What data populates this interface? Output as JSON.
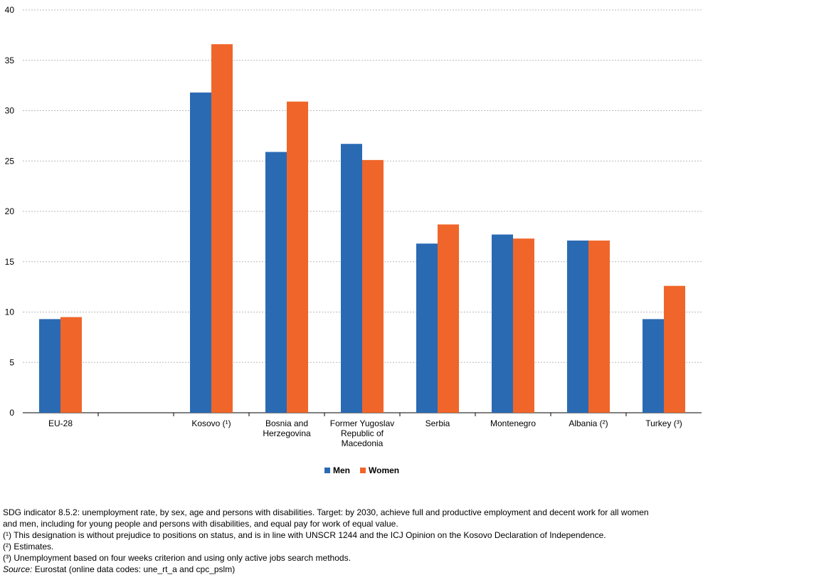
{
  "chart_data": {
    "type": "bar",
    "categories": [
      "EU-28",
      "",
      "Kosovo (¹)",
      "Bosnia and\nHerzegovina",
      "Former Yugoslav\nRepublic of\nMacedonia",
      "Serbia",
      "Montenegro",
      "Albania (²)",
      "Turkey (³)"
    ],
    "series": [
      {
        "name": "Men",
        "color": "#2a6ab3",
        "values": [
          9.3,
          null,
          31.8,
          25.9,
          26.7,
          16.8,
          17.7,
          17.1,
          9.3
        ]
      },
      {
        "name": "Women",
        "color": "#f0652a",
        "values": [
          9.5,
          null,
          36.6,
          30.9,
          25.1,
          18.7,
          17.3,
          17.1,
          12.6
        ]
      }
    ],
    "yticks": [
      "0",
      "5",
      "10",
      "15",
      "20",
      "25",
      "30",
      "35",
      "40"
    ],
    "ylim": [
      0,
      40
    ],
    "grid": true,
    "legend_position": "bottom-center"
  },
  "legend": {
    "men": "Men",
    "women": "Women"
  },
  "notes": {
    "line1": "SDG indicator 8.5.2: unemployment rate, by sex, age and persons with disabilities. Target: by 2030, achieve full and productive employment and decent work for all women",
    "line2": "and men, including for young people and persons with disabilities, and equal pay for work of equal value.",
    "line3": "(¹) This designation is without prejudice to positions on status, and is in line with UNSCR 1244 and the ICJ Opinion on the Kosovo Declaration of Independence.",
    "line4": "(²) Estimates.",
    "line5": "(³) Unemployment  based on four weeks criterion and using only active jobs search methods.",
    "source_label": "Source:",
    "source_text": " Eurostat (online data codes: une_rt_a and cpc_pslm)"
  }
}
